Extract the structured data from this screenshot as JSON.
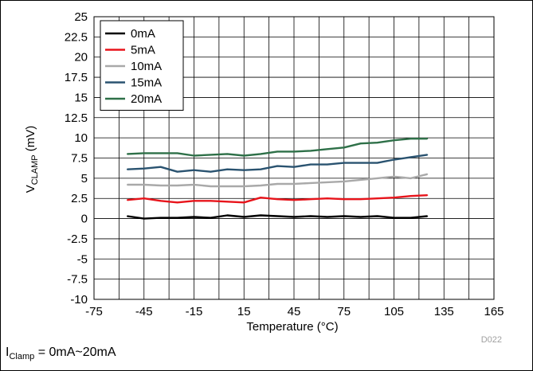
{
  "chart_data": {
    "type": "line",
    "xlabel": "Temperature (°C)",
    "ylabel_main": "V",
    "ylabel_sub": "CLAMP",
    "ylabel_unit": " (mV)",
    "xlim": [
      -75,
      165
    ],
    "ylim": [
      -10,
      25
    ],
    "x_ticks": [
      -75,
      -45,
      -15,
      15,
      45,
      75,
      105,
      135,
      165
    ],
    "y_ticks": [
      25,
      22.5,
      20,
      17.5,
      15,
      12.5,
      10,
      7.5,
      5,
      2.5,
      0,
      -2.5,
      -5,
      -7.5,
      -10
    ],
    "grid": true,
    "legend_position": "top-left",
    "x": [
      -55,
      -45,
      -35,
      -25,
      -15,
      -5,
      5,
      15,
      25,
      35,
      45,
      55,
      65,
      75,
      85,
      95,
      105,
      115,
      125
    ],
    "series": [
      {
        "name": "0mA",
        "color": "#000000",
        "values": [
          0.3,
          0.0,
          0.1,
          0.1,
          0.2,
          0.1,
          0.4,
          0.2,
          0.4,
          0.3,
          0.2,
          0.3,
          0.2,
          0.3,
          0.2,
          0.3,
          0.1,
          0.1,
          0.3
        ]
      },
      {
        "name": "5mA",
        "color": "#e8141b",
        "values": [
          2.3,
          2.5,
          2.2,
          2.0,
          2.2,
          2.2,
          2.1,
          2.0,
          2.6,
          2.4,
          2.3,
          2.4,
          2.5,
          2.4,
          2.4,
          2.5,
          2.6,
          2.8,
          2.9
        ]
      },
      {
        "name": "10mA",
        "color": "#a9a9a9",
        "values": [
          4.2,
          4.2,
          4.1,
          4.1,
          4.2,
          4.0,
          4.0,
          4.0,
          4.1,
          4.3,
          4.3,
          4.4,
          4.5,
          4.6,
          4.8,
          5.0,
          5.2,
          5.0,
          5.5
        ]
      },
      {
        "name": "15mA",
        "color": "#2a5370",
        "values": [
          6.1,
          6.2,
          6.4,
          5.8,
          6.0,
          5.8,
          6.1,
          6.0,
          6.1,
          6.5,
          6.4,
          6.7,
          6.7,
          6.9,
          6.9,
          6.9,
          7.3,
          7.6,
          7.9
        ]
      },
      {
        "name": "20mA",
        "color": "#2e7048",
        "values": [
          8.0,
          8.1,
          8.1,
          8.1,
          7.8,
          7.9,
          8.0,
          7.8,
          8.0,
          8.3,
          8.3,
          8.4,
          8.6,
          8.8,
          9.3,
          9.4,
          9.7,
          9.9,
          9.9
        ]
      }
    ]
  },
  "watermark": "D022",
  "caption": {
    "main": "I",
    "sub": "Clamp",
    "rest": " = 0mA~20mA"
  }
}
